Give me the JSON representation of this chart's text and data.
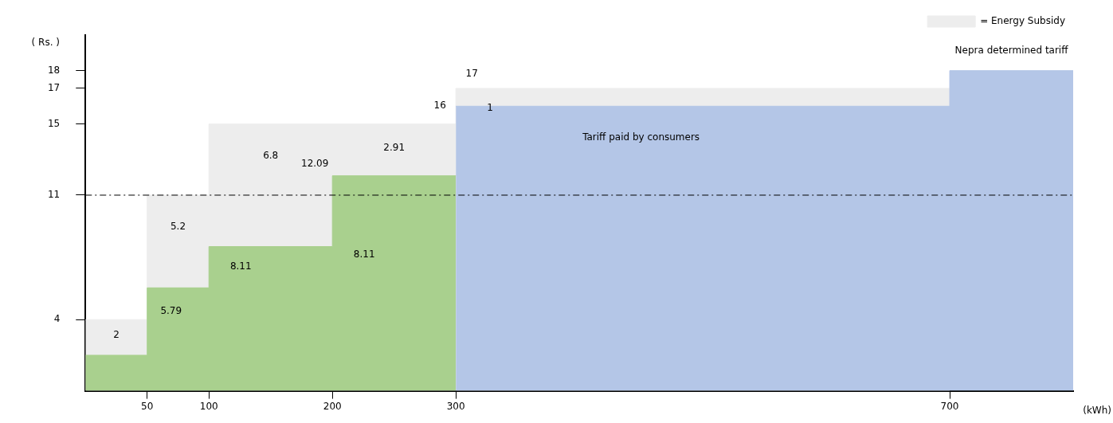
{
  "chart_data": {
    "type": "area",
    "xlabel": "(kWh)",
    "ylabel": "( Rs. )",
    "xlim": [
      0,
      800
    ],
    "xticks": [
      50,
      100,
      200,
      300,
      700
    ],
    "ylim": [
      0,
      20
    ],
    "yticks": [
      4,
      11,
      15,
      17,
      18
    ],
    "grid": false,
    "marker": "none",
    "legend": "top right",
    "series": [
      {
        "name": "= Energy Subsidy",
        "color": "#ededed",
        "x": [
          0,
          50,
          50,
          100,
          100,
          200,
          200,
          300,
          300,
          700
        ],
        "values": [
          4,
          4,
          11,
          11,
          15,
          15,
          15,
          15,
          17,
          17
        ]
      },
      {
        "color": "#a9d08e",
        "x": [
          0,
          50,
          50,
          100,
          100,
          200,
          200,
          300
        ],
        "values": [
          2,
          2,
          5.79,
          5.79,
          8.11,
          8.11,
          12.09,
          12.09
        ]
      },
      {
        "color": "#b4c6e7",
        "x": [
          300,
          700,
          700,
          800
        ],
        "values": [
          16,
          16,
          18,
          18
        ]
      }
    ],
    "ref_lines": [
      {
        "axis": "y",
        "value": 11,
        "line_style": "dashed",
        "color": "#000000"
      }
    ],
    "annotations": [
      {
        "text": "2",
        "x": 25,
        "y": 4
      },
      {
        "text": "5.2",
        "x": 75,
        "y": 11
      },
      {
        "text": "6.8",
        "x": 150,
        "y": 15
      },
      {
        "text": "2.91",
        "x": 250,
        "y": 15
      },
      {
        "text": "5.79",
        "x": 50,
        "y": 5.79
      },
      {
        "text": "8.11",
        "x": 100,
        "y": 8.11
      },
      {
        "text": "8.11",
        "x": 200,
        "y": 8.11
      },
      {
        "text": "12.09",
        "x": 200,
        "y": 12.09
      },
      {
        "text": "16",
        "x": 300,
        "y": 16
      },
      {
        "text": "17",
        "x": 300,
        "y": 17
      },
      {
        "text": "1",
        "x": 320,
        "y": 17
      },
      {
        "text": "Tariff paid by consumers",
        "x": 450,
        "y": 16
      },
      {
        "text": "Nepra determined tariff",
        "x": 750,
        "y": 18
      }
    ]
  }
}
